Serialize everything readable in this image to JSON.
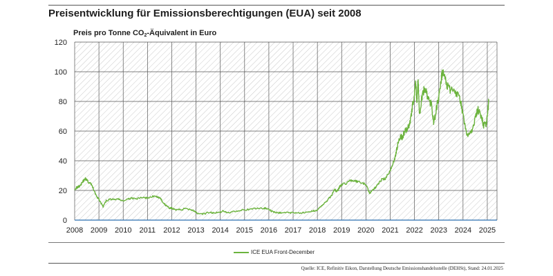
{
  "title": "Preisentwicklung für Emissionsberechtigungen (EUA) seit 2008",
  "ylabel": {
    "prefix": "Preis pro Tonne CO",
    "sub": "2",
    "suffix": "-Äquivalent in Euro"
  },
  "source": "Quelle: ICE, Refinitiv Eikon, Darstellung Deutsche Emissionshandelsstelle (DEHSt), Stand: 24.01.2025",
  "colors": {
    "series": "#6bb33d",
    "grid": "#555555",
    "hatch": "#c9c9c9",
    "zero_line": "#2a6fb0"
  },
  "chart_data": {
    "type": "line",
    "xlim": [
      2008,
      2025.4
    ],
    "ylim": [
      0,
      120
    ],
    "y_ticks": [
      0,
      20,
      40,
      60,
      80,
      100,
      120
    ],
    "x_ticks": [
      "2008",
      "2009",
      "2010",
      "2011",
      "2012",
      "2013",
      "2014",
      "2015",
      "2016",
      "2017",
      "2018",
      "2019",
      "2020",
      "2021",
      "2022",
      "2023",
      "2024",
      "2025"
    ],
    "grid": true,
    "legend_position": "bottom-center",
    "series": [
      {
        "name": "ICE EUA Front-December",
        "x": [
          2008.0,
          2008.1,
          2008.2,
          2008.3,
          2008.42,
          2008.5,
          2008.6,
          2008.7,
          2008.8,
          2008.9,
          2009.0,
          2009.1,
          2009.17,
          2009.3,
          2009.45,
          2009.6,
          2009.8,
          2010.0,
          2010.2,
          2010.35,
          2010.5,
          2010.7,
          2010.9,
          2011.0,
          2011.2,
          2011.35,
          2011.5,
          2011.6,
          2011.75,
          2011.9,
          2012.0,
          2012.2,
          2012.4,
          2012.6,
          2012.8,
          2012.95,
          2013.1,
          2013.3,
          2013.5,
          2013.7,
          2013.9,
          2014.1,
          2014.3,
          2014.6,
          2014.9,
          2015.2,
          2015.5,
          2015.8,
          2015.95,
          2016.1,
          2016.3,
          2016.5,
          2016.8,
          2017.0,
          2017.3,
          2017.6,
          2017.8,
          2018.0,
          2018.2,
          2018.4,
          2018.6,
          2018.7,
          2018.8,
          2018.9,
          2019.0,
          2019.2,
          2019.4,
          2019.6,
          2019.8,
          2020.0,
          2020.15,
          2020.25,
          2020.4,
          2020.6,
          2020.8,
          2021.0,
          2021.1,
          2021.2,
          2021.3,
          2021.4,
          2021.5,
          2021.6,
          2021.7,
          2021.8,
          2021.9,
          2022.0,
          2022.05,
          2022.1,
          2022.15,
          2022.2,
          2022.3,
          2022.4,
          2022.5,
          2022.6,
          2022.7,
          2022.8,
          2022.9,
          2023.0,
          2023.1,
          2023.15,
          2023.3,
          2023.45,
          2023.6,
          2023.75,
          2023.9,
          2024.0,
          2024.1,
          2024.2,
          2024.35,
          2024.5,
          2024.6,
          2024.75,
          2024.85,
          2024.95,
          2025.0,
          2025.06
        ],
        "y": [
          21,
          22,
          23,
          25,
          28,
          27,
          25,
          24,
          20,
          16,
          14,
          11,
          9,
          13,
          14,
          14,
          14,
          13,
          14,
          15,
          14,
          15,
          15,
          15,
          16,
          16,
          15,
          13,
          10,
          8,
          8,
          7,
          7,
          8,
          7,
          6,
          4,
          4,
          5,
          5,
          5,
          6,
          5,
          6,
          7,
          7,
          8,
          8,
          8,
          6,
          5,
          5,
          5,
          5,
          5,
          5,
          6,
          7,
          10,
          13,
          17,
          21,
          19,
          22,
          24,
          25,
          27,
          26,
          25,
          24,
          18,
          20,
          22,
          27,
          28,
          33,
          38,
          42,
          50,
          56,
          56,
          60,
          62,
          65,
          75,
          85,
          92,
          80,
          95,
          70,
          82,
          88,
          85,
          80,
          78,
          65,
          75,
          83,
          95,
          100,
          93,
          88,
          90,
          85,
          80,
          70,
          62,
          56,
          60,
          68,
          75,
          70,
          64,
          65,
          70,
          80
        ]
      }
    ]
  }
}
